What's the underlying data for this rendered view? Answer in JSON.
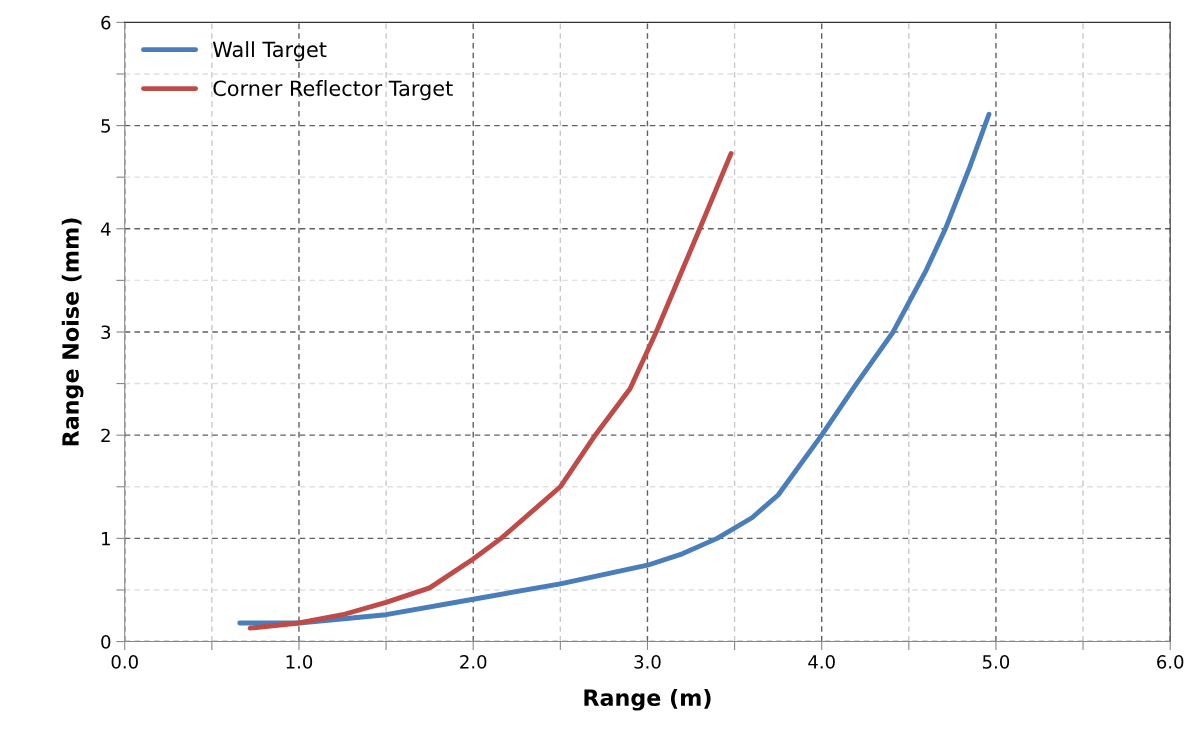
{
  "chart_data": {
    "type": "line",
    "xlabel": "Range (m)",
    "ylabel": "Range Noise (mm)",
    "series": [
      {
        "name": "Wall Target",
        "color": "#4a7ebb",
        "x": [
          0.66,
          1.0,
          1.5,
          2.0,
          2.5,
          3.0,
          3.2,
          3.4,
          3.6,
          3.75,
          4.0,
          4.2,
          4.41,
          4.6,
          4.71,
          4.85,
          4.96
        ],
        "values": [
          0.18,
          0.18,
          0.26,
          0.41,
          0.56,
          0.74,
          0.85,
          1.0,
          1.2,
          1.42,
          2.0,
          2.5,
          3.0,
          3.6,
          4.0,
          4.6,
          5.11
        ]
      },
      {
        "name": "Corner Reflector Target",
        "color": "#be4b48",
        "x": [
          0.72,
          1.0,
          1.25,
          1.5,
          1.75,
          2.0,
          2.16,
          2.5,
          2.7,
          2.9,
          3.05,
          3.2,
          3.3,
          3.48
        ],
        "values": [
          0.13,
          0.18,
          0.26,
          0.38,
          0.52,
          0.8,
          1.0,
          1.5,
          2.0,
          2.45,
          3.0,
          3.6,
          4.0,
          4.73
        ]
      }
    ],
    "xlim": [
      0,
      6
    ],
    "ylim": [
      0,
      6
    ],
    "xticks": [
      {
        "value": 0,
        "label": "0.0"
      },
      {
        "value": 0.5,
        "label": null
      },
      {
        "value": 1,
        "label": "1.0"
      },
      {
        "value": 1.5,
        "label": null
      },
      {
        "value": 2,
        "label": "2.0"
      },
      {
        "value": 2.5,
        "label": null
      },
      {
        "value": 3,
        "label": "3.0"
      },
      {
        "value": 3.5,
        "label": null
      },
      {
        "value": 4,
        "label": "4.0"
      },
      {
        "value": 4.5,
        "label": null
      },
      {
        "value": 5,
        "label": "5.0"
      },
      {
        "value": 5.5,
        "label": null
      },
      {
        "value": 6,
        "label": "6.0"
      }
    ],
    "yticks": [
      0,
      {
        "value": 0.5,
        "label": null
      },
      1,
      {
        "value": 1.5,
        "label": null
      },
      2,
      {
        "value": 2.5,
        "label": null
      },
      3,
      {
        "value": 3.5,
        "label": null
      },
      4,
      {
        "value": 4.5,
        "label": null
      },
      5,
      {
        "value": 5.5,
        "label": null
      },
      6
    ],
    "grid": true,
    "legend": "top left",
    "marker": "none",
    "line_style": "solid"
  }
}
